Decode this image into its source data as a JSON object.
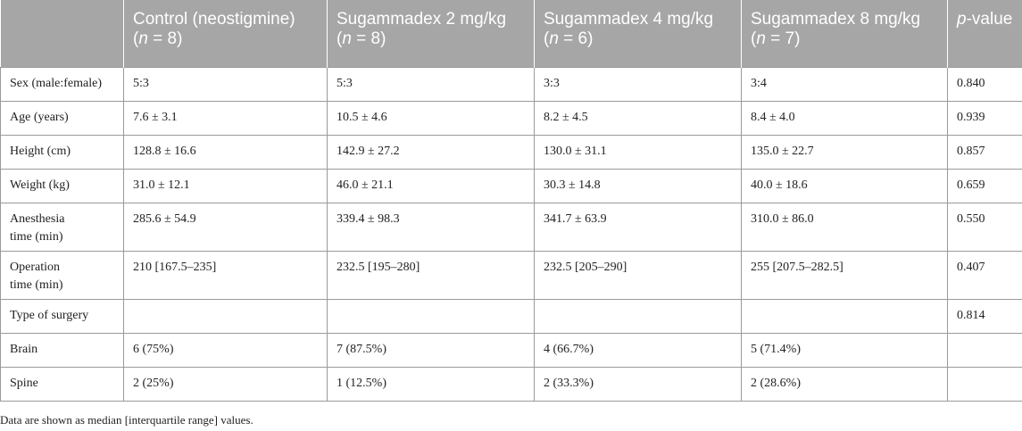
{
  "table": {
    "headers": [
      {
        "line1": "",
        "line2_pre": "",
        "n": "",
        "line2_post": ""
      },
      {
        "line1": "Control (neostigmine)",
        "line2_pre": "(",
        "n": "n",
        "line2_post": " = 8)"
      },
      {
        "line1": "Sugammadex 2 mg/kg",
        "line2_pre": "(",
        "n": "n",
        "line2_post": " = 8)"
      },
      {
        "line1": "Sugammadex 4 mg/kg",
        "line2_pre": "(",
        "n": "n",
        "line2_post": " = 6)"
      },
      {
        "line1": "Sugammadex 8 mg/kg",
        "line2_pre": "(",
        "n": "n",
        "line2_post": " = 7)"
      }
    ],
    "pvalue_header": {
      "p": "p",
      "rest": "-value"
    },
    "rows": [
      {
        "label": [
          "Sex (male:female)"
        ],
        "cells": [
          "5:3",
          "5:3",
          "3:3",
          "3:4",
          "0.840"
        ]
      },
      {
        "label": [
          "Age (years)"
        ],
        "cells": [
          "7.6 ± 3.1",
          "10.5 ± 4.6",
          "8.2 ± 4.5",
          "8.4 ± 4.0",
          "0.939"
        ]
      },
      {
        "label": [
          "Height (cm)"
        ],
        "cells": [
          "128.8 ± 16.6",
          "142.9 ± 27.2",
          "130.0 ± 31.1",
          "135.0 ± 22.7",
          "0.857"
        ]
      },
      {
        "label": [
          "Weight (kg)"
        ],
        "cells": [
          "31.0 ± 12.1",
          "46.0 ± 21.1",
          "30.3 ± 14.8",
          "40.0 ± 18.6",
          "0.659"
        ]
      },
      {
        "label": [
          "Anesthesia",
          "time (min)"
        ],
        "cells": [
          "285.6 ± 54.9",
          "339.4 ± 98.3",
          "341.7 ± 63.9",
          "310.0 ± 86.0",
          "0.550"
        ]
      },
      {
        "label": [
          "Operation",
          "time (min)"
        ],
        "cells": [
          "210 [167.5–235]",
          "232.5 [195–280]",
          "232.5 [205–290]",
          "255 [207.5–282.5]",
          "0.407"
        ]
      },
      {
        "label": [
          "Type of surgery"
        ],
        "cells": [
          "",
          "",
          "",
          "",
          "0.814"
        ]
      },
      {
        "label": [
          "Brain"
        ],
        "cells": [
          "6 (75%)",
          "7 (87.5%)",
          "4 (66.7%)",
          "5 (71.4%)",
          ""
        ]
      },
      {
        "label": [
          "Spine"
        ],
        "cells": [
          "2 (25%)",
          "1 (12.5%)",
          "2 (33.3%)",
          "2 (28.6%)",
          ""
        ]
      }
    ]
  },
  "footnote": "Data are shown as median [interquartile range] values.",
  "colors": {
    "header_bg": "#a6a6a6",
    "header_text": "#ffffff",
    "border": "#9a9a9a",
    "text": "#222222"
  }
}
